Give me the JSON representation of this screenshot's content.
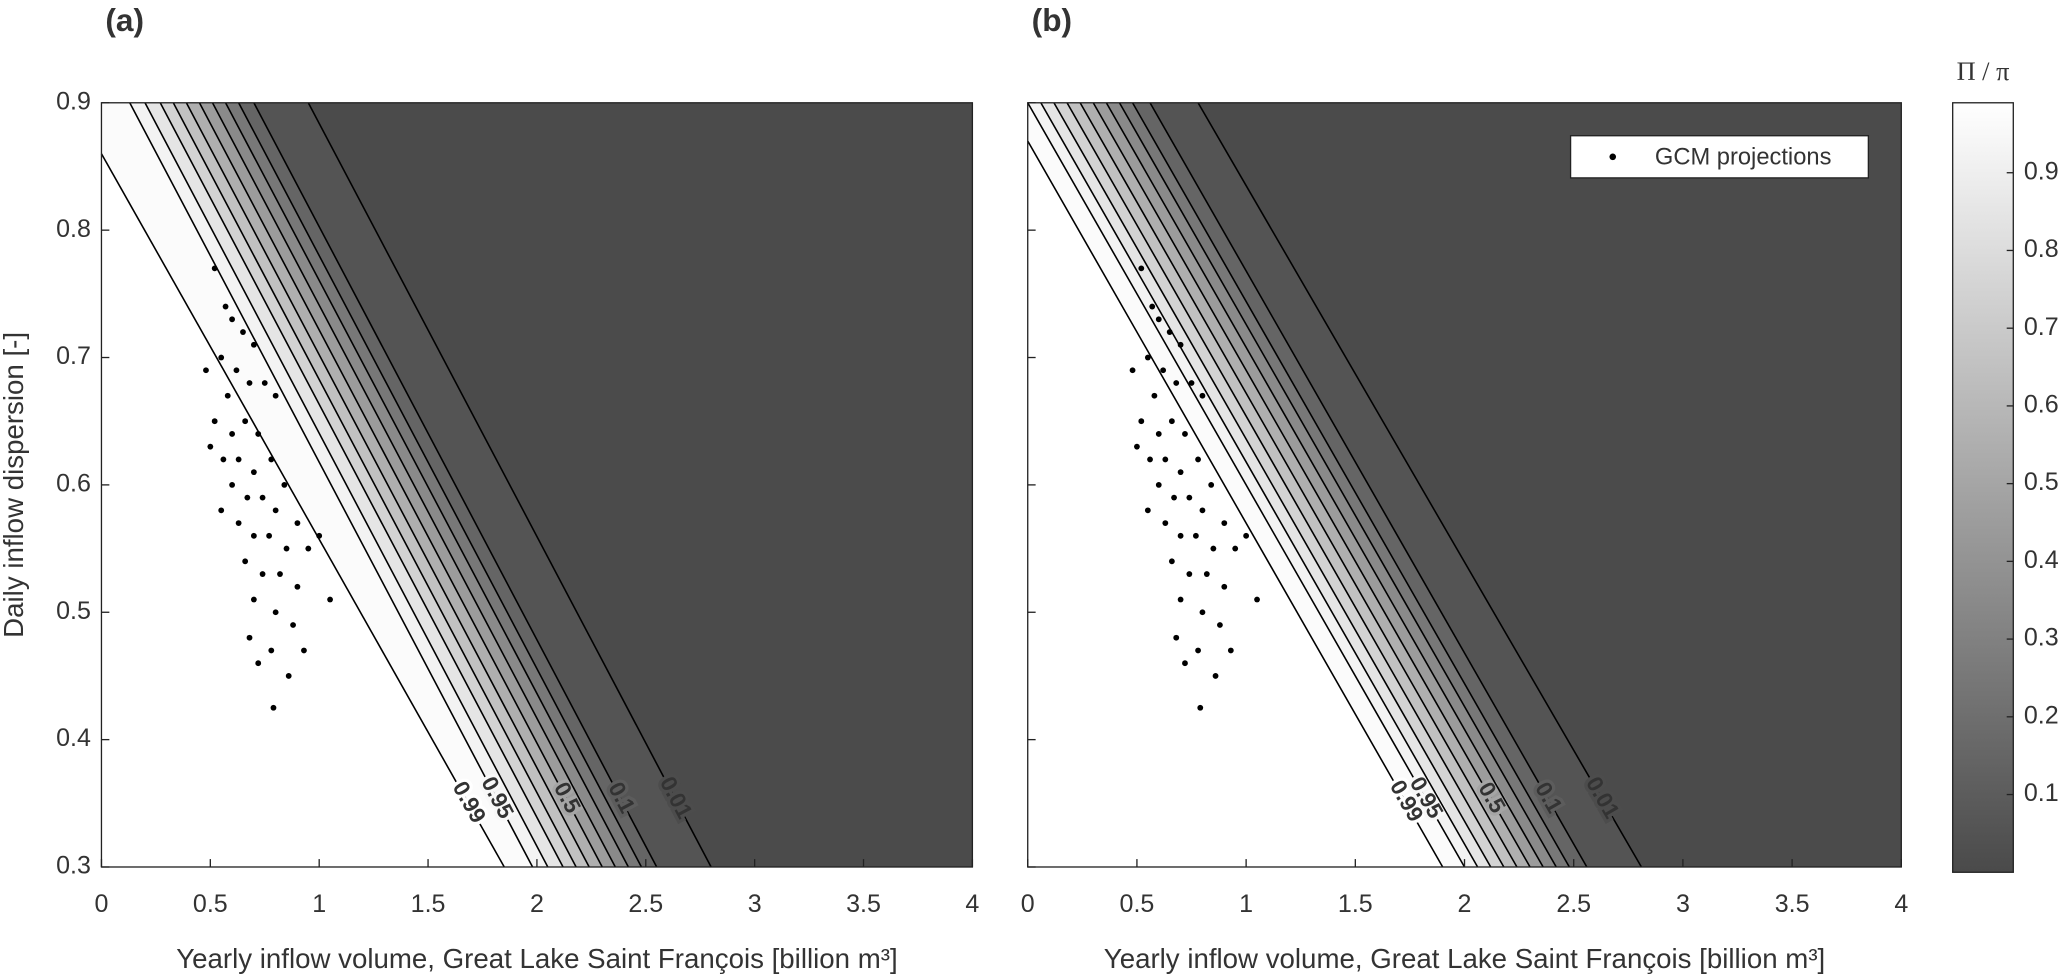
{
  "chart_data": [
    {
      "type": "contour",
      "title": "(a)",
      "xlabel": "Yearly inflow volume, Great Lake Saint François [billion m³]",
      "ylabel": "Daily inflow dispersion [-]",
      "xlim": [
        0,
        4
      ],
      "ylim": [
        0.3,
        0.9
      ],
      "xticks": [
        0,
        0.5,
        1,
        1.5,
        2,
        2.5,
        3,
        3.5,
        4
      ],
      "yticks": [
        0.3,
        0.4,
        0.5,
        0.6,
        0.7,
        0.8,
        0.9
      ],
      "contours": [
        {
          "level": 0.99,
          "x": [
            0,
            1.85
          ],
          "y": [
            0.86,
            0.3
          ],
          "labeled": true
        },
        {
          "level": 0.95,
          "x": [
            0.13,
            1.98
          ],
          "y": [
            0.9,
            0.3
          ],
          "labeled": true
        },
        {
          "level": 0.9,
          "x": [
            0.2,
            2.05
          ],
          "y": [
            0.9,
            0.3
          ]
        },
        {
          "level": 0.8,
          "x": [
            0.27,
            2.12
          ],
          "y": [
            0.9,
            0.3
          ]
        },
        {
          "level": 0.7,
          "x": [
            0.33,
            2.18
          ],
          "y": [
            0.9,
            0.3
          ]
        },
        {
          "level": 0.6,
          "x": [
            0.39,
            2.24
          ],
          "y": [
            0.9,
            0.3
          ]
        },
        {
          "level": 0.5,
          "x": [
            0.45,
            2.3
          ],
          "y": [
            0.9,
            0.3
          ],
          "labeled": true
        },
        {
          "level": 0.4,
          "x": [
            0.51,
            2.36
          ],
          "y": [
            0.9,
            0.3
          ]
        },
        {
          "level": 0.3,
          "x": [
            0.57,
            2.42
          ],
          "y": [
            0.9,
            0.3
          ]
        },
        {
          "level": 0.2,
          "x": [
            0.63,
            2.48
          ],
          "y": [
            0.9,
            0.3
          ]
        },
        {
          "level": 0.1,
          "x": [
            0.7,
            2.55
          ],
          "y": [
            0.9,
            0.3
          ],
          "labeled": true
        },
        {
          "level": 0.01,
          "x": [
            0.95,
            2.8
          ],
          "y": [
            0.9,
            0.3
          ],
          "labeled": true
        }
      ],
      "scatter": {
        "name": "GCM projections",
        "color": "#000000",
        "x": [
          0.52,
          0.57,
          0.6,
          0.65,
          0.55,
          0.62,
          0.7,
          0.48,
          0.58,
          0.68,
          0.75,
          0.8,
          0.52,
          0.6,
          0.66,
          0.72,
          0.5,
          0.56,
          0.63,
          0.7,
          0.78,
          0.84,
          0.6,
          0.67,
          0.74,
          0.55,
          0.8,
          0.9,
          0.63,
          0.7,
          0.77,
          0.85,
          0.95,
          1.0,
          0.66,
          0.74,
          0.82,
          0.9,
          1.05,
          0.7,
          0.8,
          0.88,
          0.68,
          0.78,
          0.93,
          0.72,
          0.86,
          0.79
        ],
        "y": [
          0.77,
          0.74,
          0.73,
          0.72,
          0.7,
          0.69,
          0.71,
          0.69,
          0.67,
          0.68,
          0.68,
          0.67,
          0.65,
          0.64,
          0.65,
          0.64,
          0.63,
          0.62,
          0.62,
          0.61,
          0.62,
          0.6,
          0.6,
          0.59,
          0.59,
          0.58,
          0.58,
          0.57,
          0.57,
          0.56,
          0.56,
          0.55,
          0.55,
          0.56,
          0.54,
          0.53,
          0.53,
          0.52,
          0.51,
          0.51,
          0.5,
          0.49,
          0.48,
          0.47,
          0.47,
          0.46,
          0.45,
          0.425
        ]
      }
    },
    {
      "type": "contour",
      "title": "(b)",
      "xlabel": "Yearly inflow volume, Great Lake Saint François [billion m³]",
      "xlim": [
        0,
        4
      ],
      "ylim": [
        0.3,
        0.9
      ],
      "xticks": [
        0,
        0.5,
        1,
        1.5,
        2,
        2.5,
        3,
        3.5,
        4
      ],
      "yticks": [
        0.3,
        0.4,
        0.5,
        0.6,
        0.7,
        0.8,
        0.9
      ],
      "ytick_labels": false,
      "legend": "upper right",
      "contours": [
        {
          "level": 0.99,
          "x": [
            0,
            1.9
          ],
          "y": [
            0.87,
            0.3
          ],
          "labeled": true
        },
        {
          "level": 0.95,
          "x": [
            0,
            2.0
          ],
          "y": [
            0.9,
            0.3
          ],
          "labeled": true
        },
        {
          "level": 0.9,
          "x": [
            0.06,
            2.06
          ],
          "y": [
            0.9,
            0.3
          ]
        },
        {
          "level": 0.8,
          "x": [
            0.12,
            2.12
          ],
          "y": [
            0.9,
            0.3
          ]
        },
        {
          "level": 0.7,
          "x": [
            0.18,
            2.18
          ],
          "y": [
            0.9,
            0.3
          ]
        },
        {
          "level": 0.6,
          "x": [
            0.24,
            2.24
          ],
          "y": [
            0.9,
            0.3
          ]
        },
        {
          "level": 0.5,
          "x": [
            0.3,
            2.3
          ],
          "y": [
            0.9,
            0.3
          ],
          "labeled": true
        },
        {
          "level": 0.4,
          "x": [
            0.36,
            2.36
          ],
          "y": [
            0.9,
            0.3
          ]
        },
        {
          "level": 0.3,
          "x": [
            0.42,
            2.42
          ],
          "y": [
            0.9,
            0.3
          ]
        },
        {
          "level": 0.2,
          "x": [
            0.48,
            2.48
          ],
          "y": [
            0.9,
            0.3
          ]
        },
        {
          "level": 0.1,
          "x": [
            0.56,
            2.56
          ],
          "y": [
            0.9,
            0.3
          ],
          "labeled": true
        },
        {
          "level": 0.01,
          "x": [
            0.78,
            2.81
          ],
          "y": [
            0.9,
            0.3
          ],
          "labeled": true
        }
      ],
      "scatter": {
        "name": "GCM projections",
        "color": "#000000",
        "x": [
          0.52,
          0.57,
          0.6,
          0.65,
          0.55,
          0.62,
          0.7,
          0.48,
          0.58,
          0.68,
          0.75,
          0.8,
          0.52,
          0.6,
          0.66,
          0.72,
          0.5,
          0.56,
          0.63,
          0.7,
          0.78,
          0.84,
          0.6,
          0.67,
          0.74,
          0.55,
          0.8,
          0.9,
          0.63,
          0.7,
          0.77,
          0.85,
          0.95,
          1.0,
          0.66,
          0.74,
          0.82,
          0.9,
          1.05,
          0.7,
          0.8,
          0.88,
          0.68,
          0.78,
          0.93,
          0.72,
          0.86,
          0.79
        ],
        "y": [
          0.77,
          0.74,
          0.73,
          0.72,
          0.7,
          0.69,
          0.71,
          0.69,
          0.67,
          0.68,
          0.68,
          0.67,
          0.65,
          0.64,
          0.65,
          0.64,
          0.63,
          0.62,
          0.62,
          0.61,
          0.62,
          0.6,
          0.6,
          0.59,
          0.59,
          0.58,
          0.58,
          0.57,
          0.57,
          0.56,
          0.56,
          0.55,
          0.55,
          0.56,
          0.54,
          0.53,
          0.53,
          0.52,
          0.51,
          0.51,
          0.5,
          0.49,
          0.48,
          0.47,
          0.47,
          0.46,
          0.45,
          0.425
        ]
      },
      "colorbar": {
        "title": "Π / π",
        "clim": [
          0,
          0.99
        ],
        "ticks": [
          0.1,
          0.2,
          0.3,
          0.4,
          0.5,
          0.6,
          0.7,
          0.8,
          0.9
        ],
        "colormap": [
          "#4a4a4a",
          "#ffffff"
        ]
      }
    }
  ]
}
